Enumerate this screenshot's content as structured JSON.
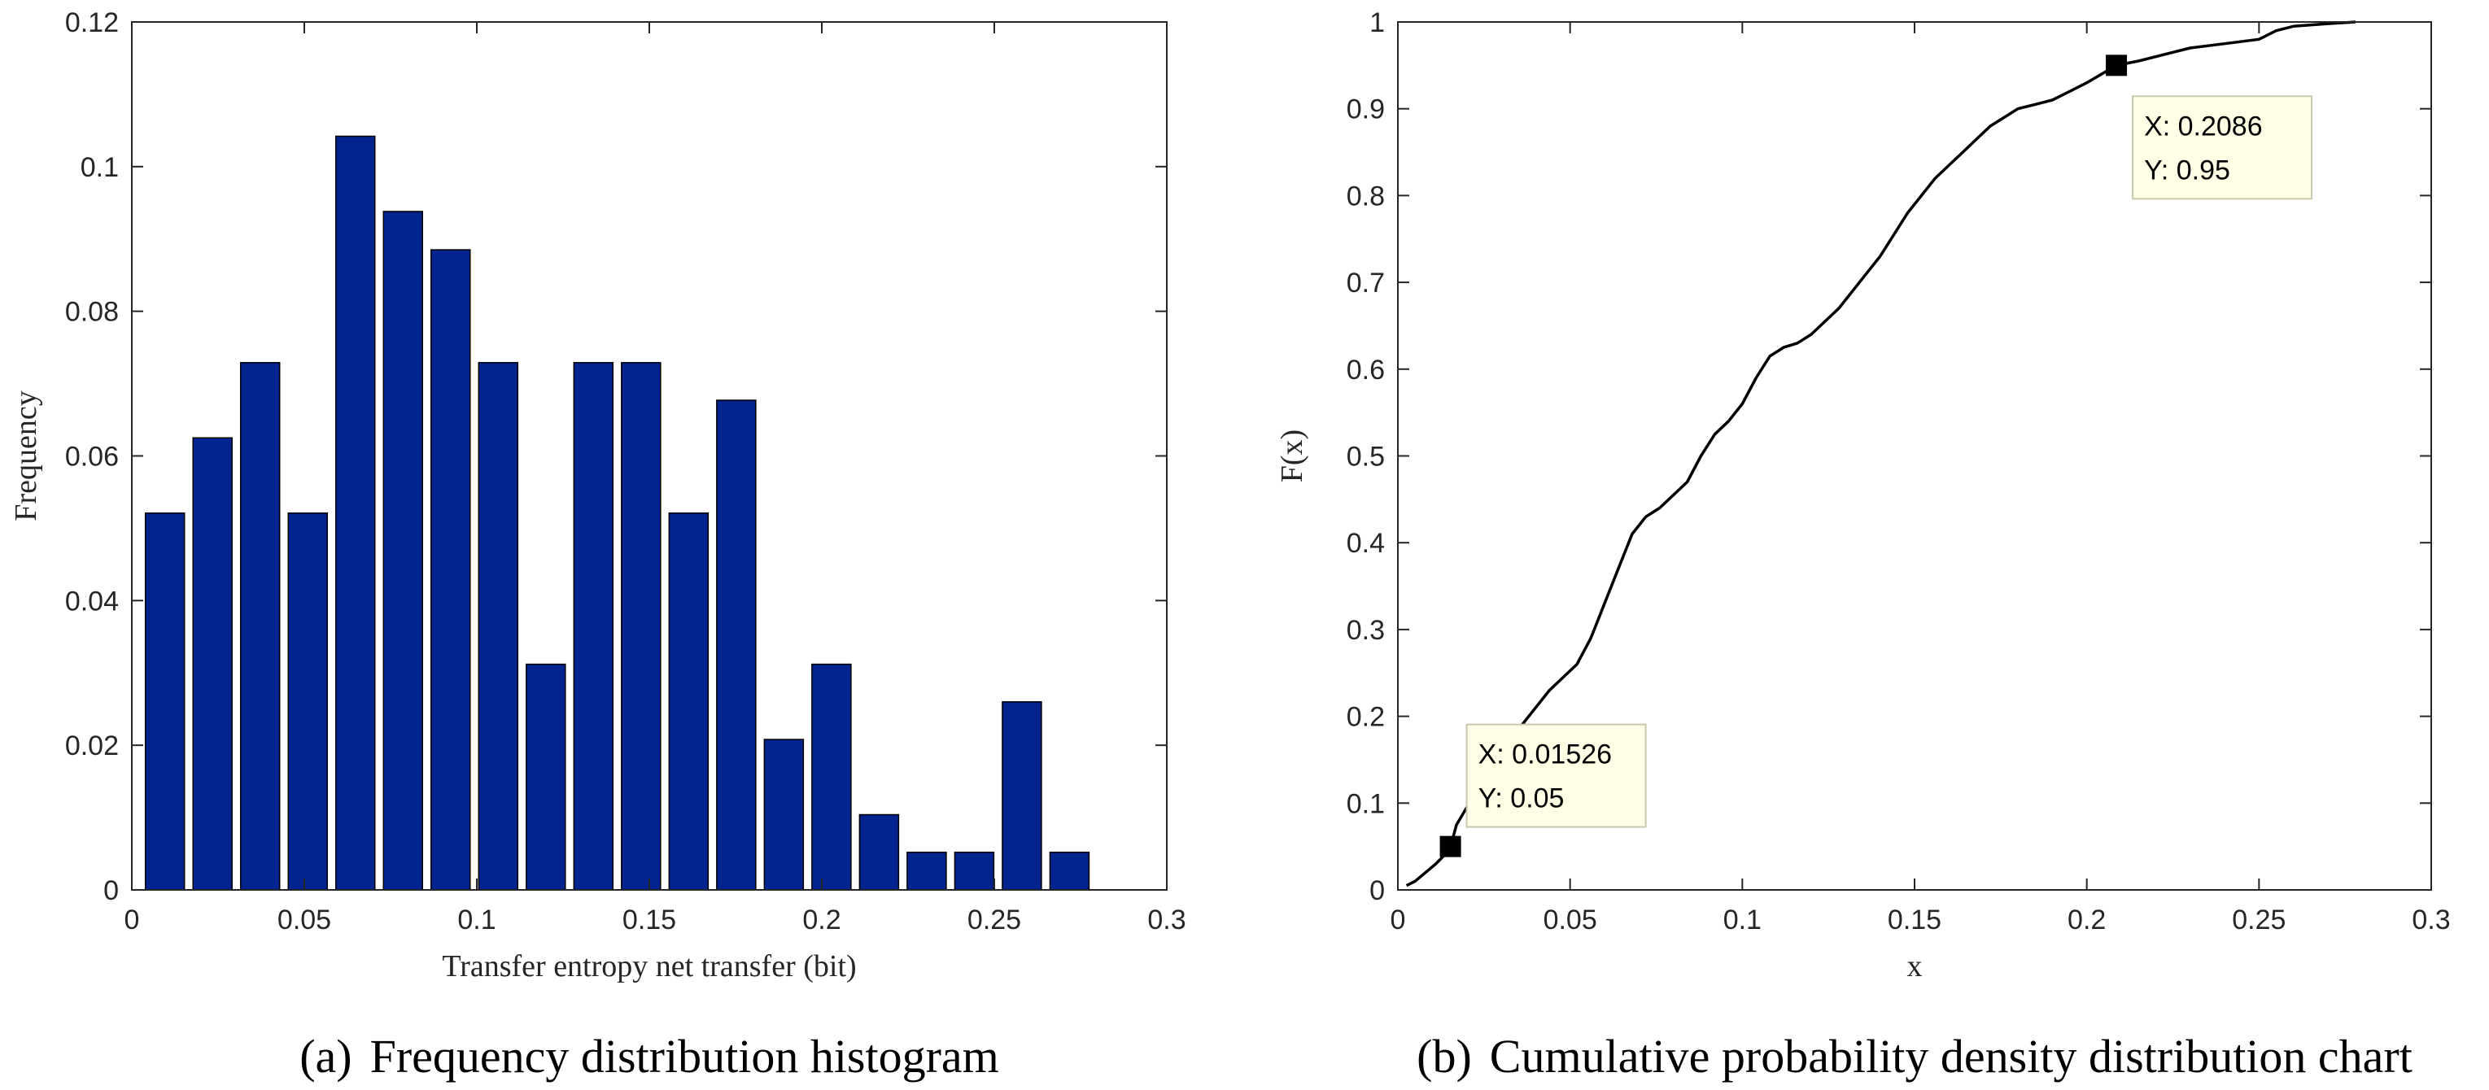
{
  "chart_data": [
    {
      "type": "bar",
      "title": "Frequency distribution histogram",
      "caption_prefix": "(a)",
      "xlabel": "Transfer entropy net transfer (bit)",
      "ylabel": "Frequency",
      "xlim": [
        0,
        0.3
      ],
      "ylim": [
        0,
        0.12
      ],
      "xticks": [
        0,
        0.05,
        0.1,
        0.15,
        0.2,
        0.25,
        0.3
      ],
      "xtick_labels": [
        "0",
        "0.05",
        "0.1",
        "0.15",
        "0.2",
        "0.25",
        "0.3"
      ],
      "yticks": [
        0,
        0.02,
        0.04,
        0.06,
        0.08,
        0.1,
        0.12
      ],
      "ytick_labels": [
        "0",
        "0.02",
        "0.04",
        "0.06",
        "0.08",
        "0.1",
        "0.12"
      ],
      "bar_color": "#03248f",
      "bin_width": 0.0138,
      "x": [
        0.0096,
        0.0234,
        0.0372,
        0.051,
        0.0648,
        0.0786,
        0.0924,
        0.1062,
        0.12,
        0.1338,
        0.1476,
        0.1614,
        0.1752,
        0.189,
        0.2028,
        0.2166,
        0.2304,
        0.2442,
        0.258,
        0.2718
      ],
      "values": [
        0.0521,
        0.0625,
        0.0729,
        0.0521,
        0.1042,
        0.0938,
        0.0885,
        0.0729,
        0.0312,
        0.0729,
        0.0729,
        0.0521,
        0.0677,
        0.0208,
        0.0312,
        0.0104,
        0.0052,
        0.0052,
        0.026,
        0.0052
      ]
    },
    {
      "type": "line",
      "title": "Cumulative probability density distribution chart",
      "caption_prefix": "(b)",
      "xlabel": "x",
      "ylabel": "F(x)",
      "xlim": [
        0,
        0.3
      ],
      "ylim": [
        0,
        1
      ],
      "xticks": [
        0,
        0.05,
        0.1,
        0.15,
        0.2,
        0.25,
        0.3
      ],
      "xtick_labels": [
        "0",
        "0.05",
        "0.1",
        "0.15",
        "0.2",
        "0.25",
        "0.3"
      ],
      "yticks": [
        0,
        0.1,
        0.2,
        0.3,
        0.4,
        0.5,
        0.6,
        0.7,
        0.8,
        0.9,
        1
      ],
      "ytick_labels": [
        "0",
        "0.1",
        "0.2",
        "0.3",
        "0.4",
        "0.5",
        "0.6",
        "0.7",
        "0.8",
        "0.9",
        "1"
      ],
      "series": [
        {
          "name": "F(x)",
          "x": [
            0.0025,
            0.005,
            0.008,
            0.011,
            0.0135,
            0.0153,
            0.017,
            0.02,
            0.024,
            0.028,
            0.032,
            0.036,
            0.04,
            0.044,
            0.048,
            0.052,
            0.056,
            0.06,
            0.064,
            0.068,
            0.072,
            0.076,
            0.08,
            0.084,
            0.088,
            0.092,
            0.096,
            0.1,
            0.104,
            0.108,
            0.112,
            0.116,
            0.12,
            0.124,
            0.128,
            0.132,
            0.136,
            0.14,
            0.144,
            0.148,
            0.152,
            0.156,
            0.16,
            0.164,
            0.168,
            0.172,
            0.176,
            0.18,
            0.185,
            0.19,
            0.195,
            0.2,
            0.2086,
            0.215,
            0.22,
            0.225,
            0.23,
            0.24,
            0.25,
            0.255,
            0.26,
            0.27,
            0.278
          ],
          "y": [
            0.005,
            0.01,
            0.02,
            0.03,
            0.04,
            0.05,
            0.075,
            0.095,
            0.115,
            0.14,
            0.17,
            0.19,
            0.21,
            0.23,
            0.245,
            0.26,
            0.29,
            0.33,
            0.37,
            0.41,
            0.43,
            0.44,
            0.455,
            0.47,
            0.5,
            0.525,
            0.54,
            0.56,
            0.59,
            0.615,
            0.625,
            0.63,
            0.64,
            0.655,
            0.67,
            0.69,
            0.71,
            0.73,
            0.755,
            0.78,
            0.8,
            0.82,
            0.835,
            0.85,
            0.865,
            0.88,
            0.89,
            0.9,
            0.905,
            0.91,
            0.92,
            0.93,
            0.95,
            0.955,
            0.96,
            0.965,
            0.97,
            0.975,
            0.98,
            0.99,
            0.995,
            0.998,
            1.0
          ]
        }
      ],
      "datatips": [
        {
          "x": 0.01526,
          "y": 0.05,
          "label_x": "X: 0.01526",
          "label_y": "Y: 0.05"
        },
        {
          "x": 0.2086,
          "y": 0.95,
          "label_x": "X: 0.2086",
          "label_y": "Y: 0.95"
        }
      ]
    }
  ]
}
